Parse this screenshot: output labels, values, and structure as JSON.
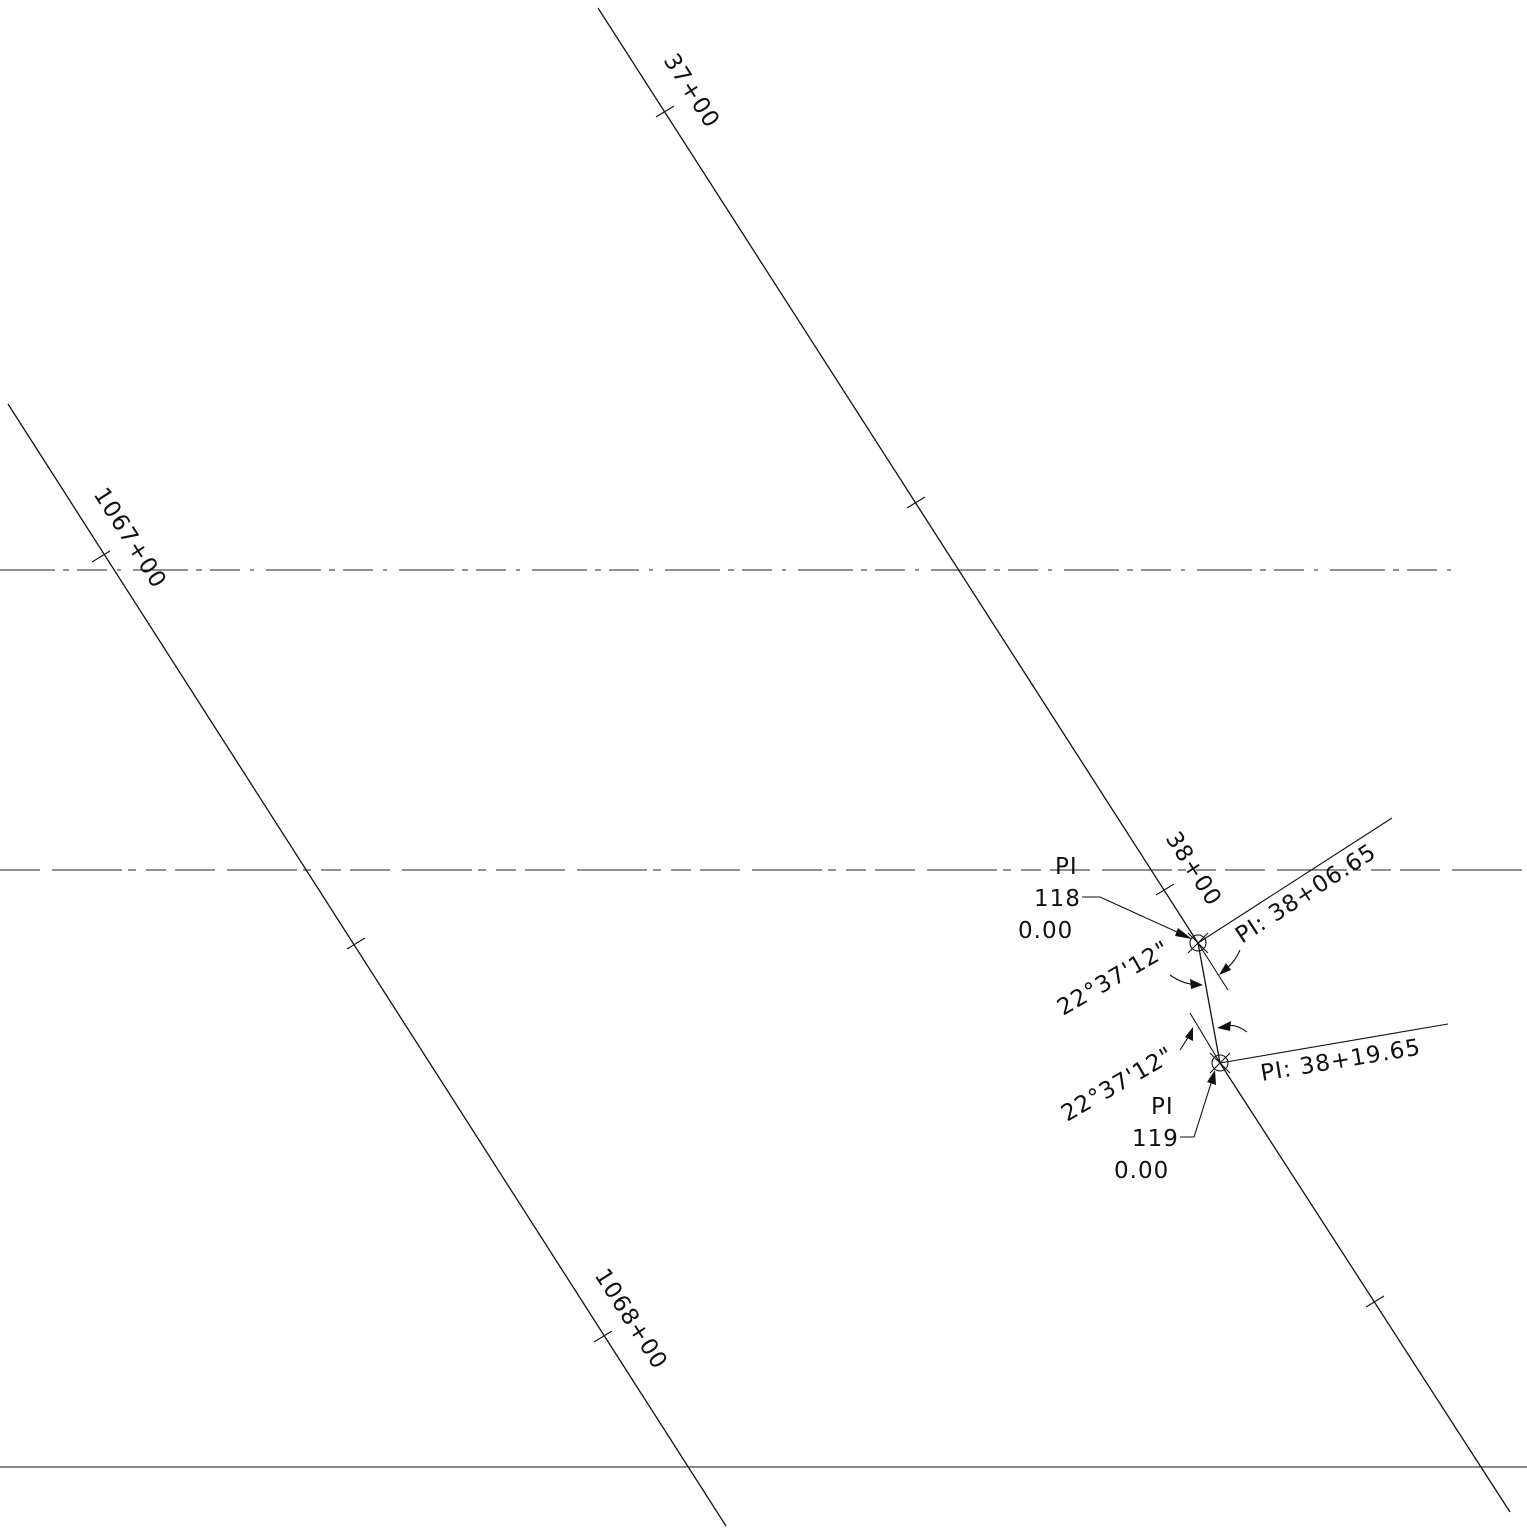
{
  "stations": {
    "s1067": "1067+00",
    "s1068": "1068+00",
    "s37": "37+00",
    "s38": "38+00"
  },
  "pi118": {
    "label": "PI",
    "number": "118",
    "value": "0.00",
    "angle": "22°37'12\"",
    "station": "PI:  38+06.65"
  },
  "pi119": {
    "label": "PI",
    "number": "119",
    "value": "0.00",
    "angle": "22°37'12\"",
    "station": "PI:  38+19.65"
  }
}
